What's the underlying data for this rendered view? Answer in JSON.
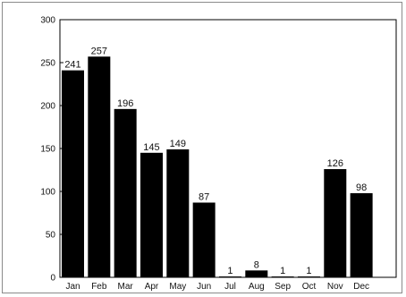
{
  "chart_data": {
    "type": "bar",
    "categories": [
      "Jan",
      "Feb",
      "Mar",
      "Apr",
      "May",
      "Jun",
      "Jul",
      "Aug",
      "Sep",
      "Oct",
      "Nov",
      "Dec"
    ],
    "values": [
      241,
      257,
      196,
      145,
      149,
      87,
      1,
      8,
      1,
      1,
      126,
      98
    ],
    "data_labels": [
      "241",
      "257",
      "196",
      "145",
      "149",
      "87",
      "1",
      "8",
      "1",
      "1",
      "126",
      "98"
    ],
    "yticks": [
      0,
      50,
      100,
      150,
      200,
      250,
      300
    ],
    "ylim": [
      0,
      300
    ],
    "title": "",
    "xlabel": "",
    "ylabel": "",
    "grid": false,
    "bar_color": "#000000"
  }
}
